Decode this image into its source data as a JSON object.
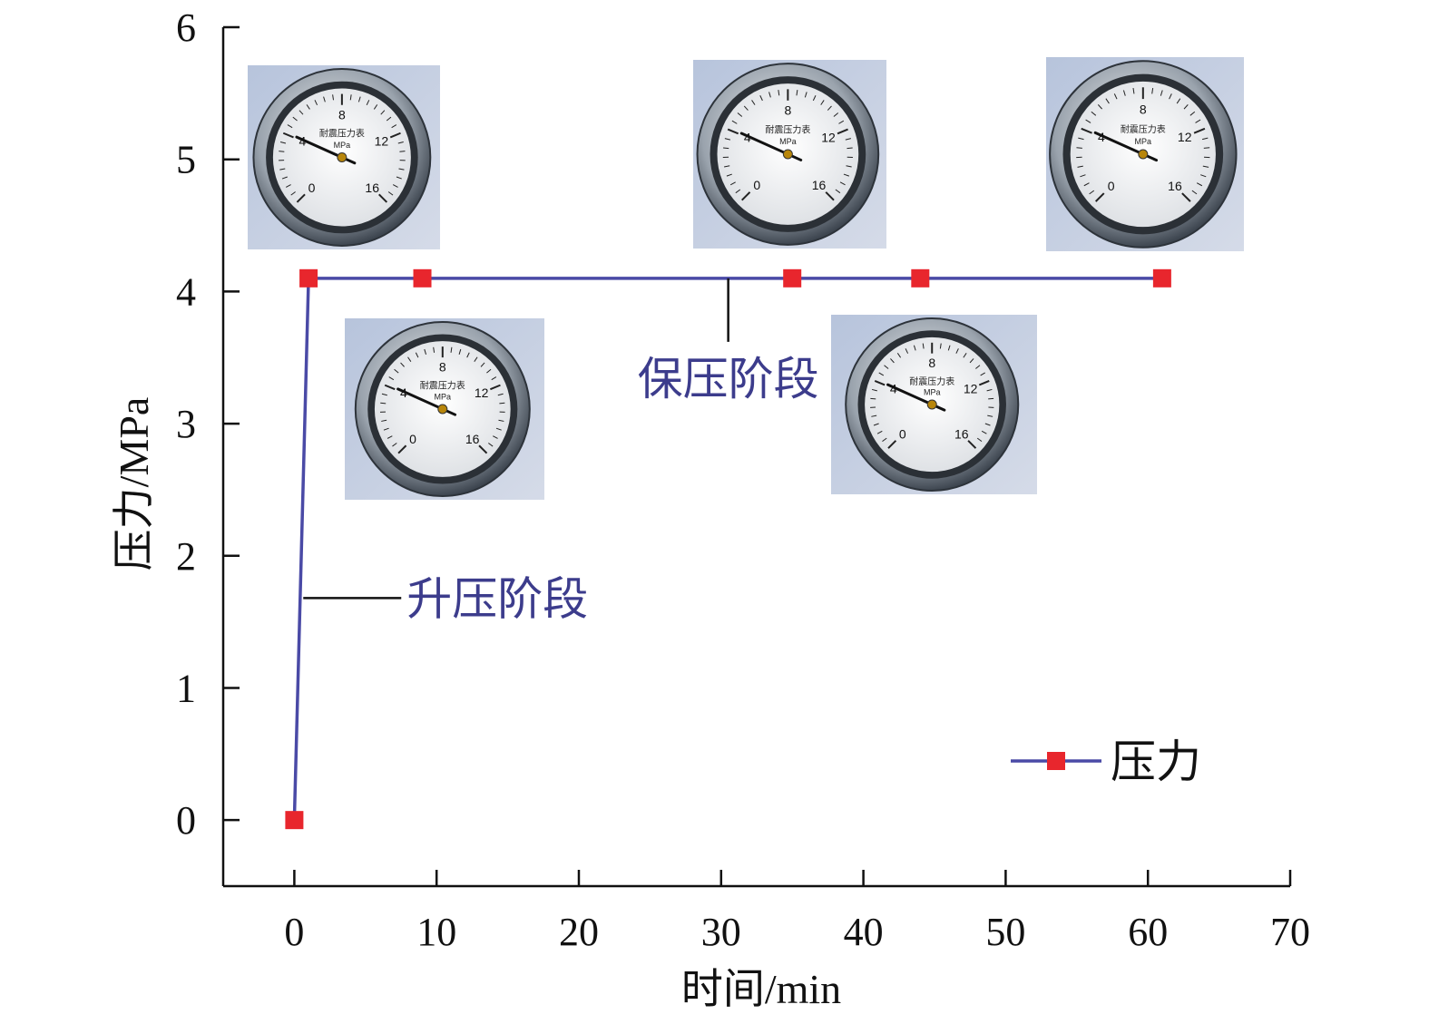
{
  "chart_data": {
    "type": "line",
    "xlabel": "时间/min",
    "ylabel": "压力/MPa",
    "xlim": [
      -5,
      70
    ],
    "ylim": [
      -0.5,
      6
    ],
    "xticks": [
      0,
      10,
      20,
      30,
      40,
      50,
      60,
      70
    ],
    "yticks": [
      0,
      1,
      2,
      3,
      4,
      5,
      6
    ],
    "grid": false,
    "legend_position": "bottom-right",
    "series": [
      {
        "name": "压力",
        "x": [
          0,
          1,
          9,
          35,
          44,
          61
        ],
        "y": [
          0,
          4.1,
          4.1,
          4.1,
          4.1,
          4.1
        ]
      }
    ],
    "annotations": [
      {
        "text": "升压阶段",
        "x": 0.5,
        "y": 1.68
      },
      {
        "text": "保压阶段",
        "x": 30.5,
        "y": 4.1
      }
    ],
    "gauge_photos": {
      "count": 5,
      "gauge_label": "耐震压力表",
      "unit": "MPa",
      "dial_numbers": [
        "0",
        "4",
        "8",
        "12",
        "16"
      ]
    }
  },
  "colors": {
    "line": "#4a4aa6",
    "marker": "#e8262d",
    "annotation_text": "#3c3c8c",
    "axis": "#111111"
  }
}
